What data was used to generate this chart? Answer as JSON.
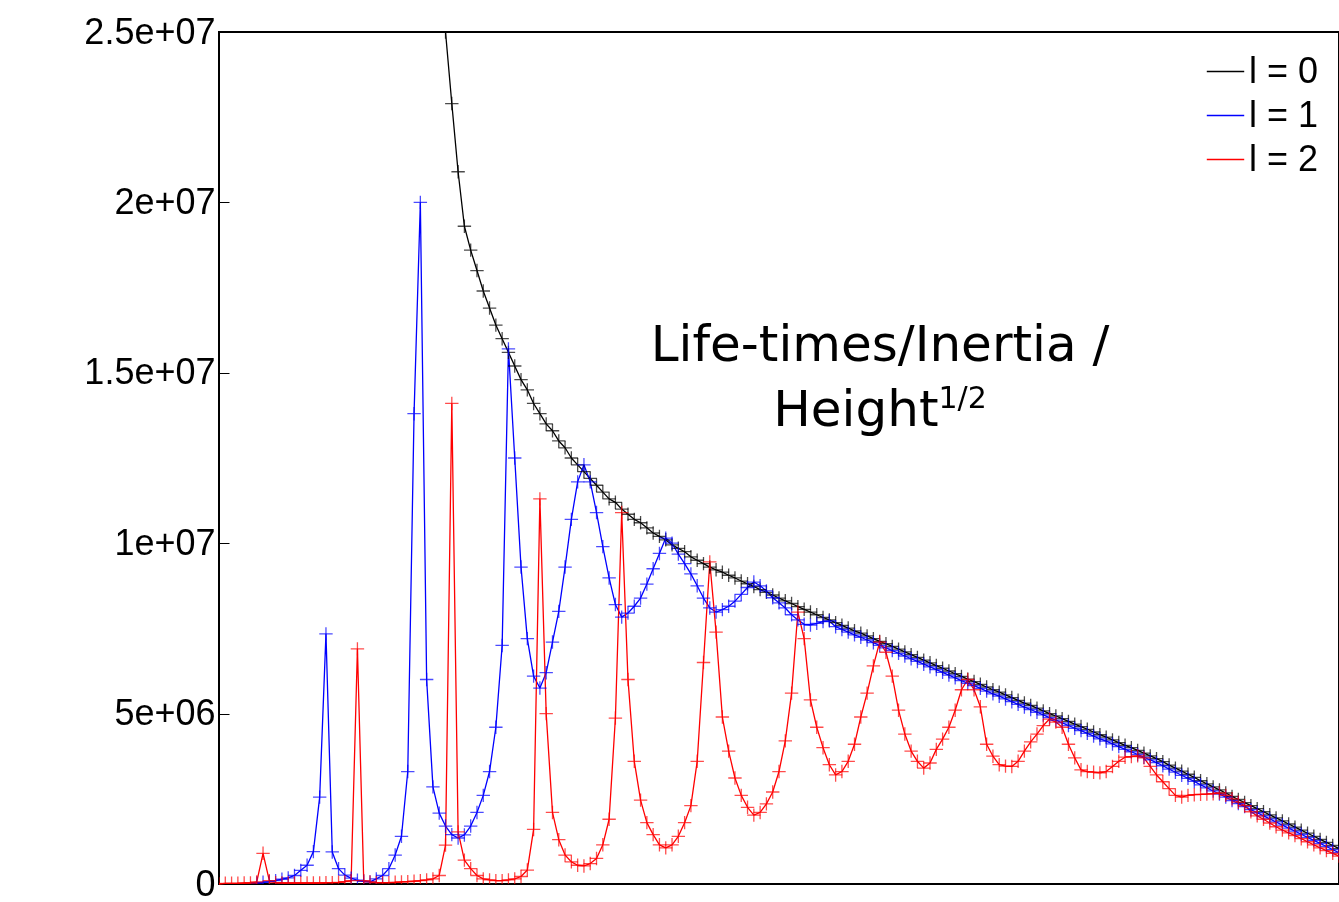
{
  "chart_data": {
    "type": "line",
    "annotations": [
      "Life-times/Inertia / Height$^{1/2}$"
    ],
    "categories": [
      null,
      null,
      null,
      null,
      null,
      null,
      null,
      null,
      null,
      null,
      null,
      null,
      null,
      null,
      null,
      null,
      null,
      null,
      null,
      null,
      null,
      null,
      null,
      null,
      null,
      null,
      null,
      null,
      null,
      null,
      null,
      null,
      null,
      null,
      null,
      null,
      null,
      null,
      null,
      null,
      null,
      null,
      null,
      null,
      null,
      null,
      null,
      null,
      null,
      null,
      null,
      null,
      null,
      null,
      null,
      null,
      null,
      null,
      null,
      null,
      null,
      null,
      null,
      null,
      null,
      null,
      null,
      null,
      null,
      null,
      null,
      null,
      null,
      null,
      null,
      null,
      null,
      null,
      null,
      null,
      null,
      null,
      null,
      null,
      null,
      null,
      null,
      null,
      null,
      null,
      null,
      null,
      null,
      null,
      null,
      null,
      null,
      null,
      null,
      null,
      null,
      null,
      null,
      null,
      null,
      null,
      null,
      null,
      null,
      null,
      null,
      null,
      null,
      null,
      null,
      null,
      null,
      null,
      null,
      null,
      null,
      null,
      null,
      null,
      null,
      null,
      null,
      null,
      null,
      null,
      null,
      null,
      null,
      null,
      null,
      null,
      null,
      null,
      null,
      null,
      null,
      null,
      null,
      null,
      null,
      null,
      null,
      null,
      null,
      null,
      null,
      null,
      null,
      null,
      null,
      null,
      null,
      null,
      null,
      null,
      null,
      null,
      null,
      null,
      null,
      null,
      null,
      null,
      null,
      null,
      null,
      null,
      null,
      null,
      null,
      null,
      null,
      null,
      null
    ],
    "ylim": [
      0,
      25000000
    ],
    "yticks": [
      0,
      {
        "value": 5000000,
        "label": "5e+06"
      },
      {
        "value": 10000000,
        "label": "1e+07"
      },
      {
        "value": 15000000,
        "label": "1.5e+07"
      },
      {
        "value": 20000000,
        "label": "2e+07"
      },
      {
        "value": 25000000,
        "label": "2.5e+07"
      }
    ],
    "tick_labels": "y",
    "grid": false,
    "legend": "top right",
    "marker": "cross",
    "line_style": "solid",
    "series": [
      {
        "name": "l = 0",
        "color": "#000000",
        "values": [
          null,
          null,
          null,
          null,
          null,
          null,
          null,
          null,
          null,
          null,
          null,
          null,
          null,
          null,
          null,
          null,
          null,
          null,
          null,
          null,
          null,
          null,
          null,
          null,
          null,
          null,
          null,
          null,
          null,
          null,
          null,
          null,
          null,
          null,
          null,
          null,
          25000000.0,
          22900000.0,
          20900000.0,
          19300000.0,
          18600000.0,
          18000000.0,
          17400000.0,
          16900000.0,
          16400000.0,
          16000000.0,
          15600000.0,
          15200000.0,
          14800000.0,
          14500000.0,
          14100000.0,
          13800000.0,
          13500000.0,
          13300000.0,
          13000000.0,
          12800000.0,
          12500000.0,
          12300000.0,
          12100000.0,
          11900000.0,
          11700000.0,
          11500000.0,
          11300000.0,
          11200000.0,
          11000000.0,
          10850000.0,
          10700000.0,
          10600000.0,
          10450000.0,
          10300000.0,
          10200000.0,
          10100000.0,
          9950000.0,
          9850000.0,
          9750000.0,
          9600000.0,
          9500000.0,
          9400000.0,
          9300000.0,
          9220000.0,
          9150000.0,
          9060000.0,
          8980000.0,
          8890000.0,
          8810000.0,
          8730000.0,
          8640000.0,
          8560000.0,
          8480000.0,
          8390000.0,
          8310000.0,
          8230000.0,
          8140000.0,
          8060000.0,
          7980000.0,
          7900000.0,
          7820000.0,
          7750000.0,
          7670000.0,
          7590000.0,
          7510000.0,
          7430000.0,
          7360000.0,
          7280000.0,
          7200000.0,
          7120000.0,
          7050000.0,
          6970000.0,
          6890000.0,
          6810000.0,
          6730000.0,
          6650000.0,
          6570000.0,
          6490000.0,
          6410000.0,
          6330000.0,
          6250000.0,
          6170000.0,
          6090000.0,
          6010000.0,
          5940000.0,
          5860000.0,
          5780000.0,
          5700000.0,
          5630000.0,
          5550000.0,
          5470000.0,
          5390000.0,
          5310000.0,
          5240000.0,
          5160000.0,
          5080000.0,
          5000000.0,
          4930000.0,
          4850000.0,
          4770000.0,
          4690000.0,
          4620000.0,
          4540000.0,
          4460000.0,
          4380000.0,
          4310000.0,
          4230000.0,
          4150000.0,
          4070000.0,
          4000000.0,
          3920000.0,
          3840000.0,
          3760000.0,
          3680000.0,
          3590000.0,
          3490000.0,
          3400000.0,
          3310000.0,
          3220000.0,
          3130000.0,
          3030000.0,
          2940000.0,
          2850000.0,
          2760000.0,
          2670000.0,
          2570000.0,
          2480000.0,
          2390000.0,
          2300000.0,
          2210000.0,
          2120000.0,
          2030000.0,
          1940000.0,
          1850000.0,
          1760000.0,
          1670000.0,
          1580000.0,
          1490000.0,
          1400000.0,
          1310000.0,
          1220000.0,
          1130000.0,
          1040000.0
        ]
      },
      {
        "name": "l = 1",
        "color": "#0000ff",
        "values": [
          null,
          null,
          null,
          null,
          null,
          null,
          30000.0,
          50000.0,
          70000.0,
          100000.0,
          140000.0,
          180000.0,
          250000.0,
          400000.0,
          550000.0,
          950000.0,
          2550000.0,
          7340000.0,
          940000.0,
          450000.0,
          260000.0,
          170000.0,
          110000.0,
          80000.0,
          60000.0,
          150000.0,
          250000.0,
          450000.0,
          850000.0,
          1400000.0,
          3300000.0,
          13800000.0,
          20000000.0,
          6000000.0,
          2850000.0,
          2080000.0,
          1700000.0,
          1450000.0,
          1350000.0,
          1440000.0,
          1700000.0,
          2100000.0,
          2600000.0,
          3300000.0,
          4600000.0,
          7000000.0,
          15700000.0,
          12500000.0,
          9300000.0,
          7200000.0,
          6100000.0,
          5750000.0,
          6200000.0,
          7100000.0,
          8000000.0,
          9300000.0,
          10700000.0,
          11800000.0,
          12300000.0,
          11800000.0,
          10900000.0,
          9900000.0,
          8980000.0,
          8200000.0,
          7830000.0,
          7950000.0,
          8150000.0,
          8390000.0,
          8800000.0,
          9250000.0,
          9700000.0,
          10150000.0,
          10000000.0,
          9680000.0,
          9400000.0,
          9100000.0,
          8750000.0,
          8390000.0,
          8100000.0,
          7980000.0,
          8050000.0,
          8150000.0,
          8300000.0,
          8500000.0,
          8700000.0,
          8860000.0,
          8750000.0,
          8600000.0,
          8400000.0,
          8250000.0,
          8100000.0,
          7900000.0,
          7750000.0,
          7620000.0,
          7600000.0,
          7650000.0,
          7700000.0,
          7720000.0,
          7550000.0,
          7470000.0,
          7390000.0,
          7310000.0,
          7240000.0,
          7160000.0,
          7080000.0,
          7000000.0,
          6930000.0,
          6850000.0,
          6770000.0,
          6690000.0,
          6610000.0,
          6530000.0,
          6450000.0,
          6370000.0,
          6290000.0,
          6210000.0,
          6130000.0,
          6050000.0,
          5970000.0,
          5890000.0,
          5820000.0,
          5740000.0,
          5660000.0,
          5580000.0,
          5510000.0,
          5430000.0,
          5350000.0,
          5270000.0,
          5190000.0,
          5120000.0,
          5040000.0,
          4960000.0,
          4880000.0,
          4810000.0,
          4730000.0,
          4650000.0,
          4570000.0,
          4500000.0,
          4420000.0,
          4340000.0,
          4260000.0,
          4190000.0,
          4110000.0,
          4030000.0,
          3950000.0,
          3880000.0,
          3800000.0,
          3720000.0,
          3640000.0,
          3560000.0,
          3470000.0,
          3370000.0,
          3280000.0,
          3190000.0,
          3100000.0,
          3010000.0,
          2910000.0,
          2820000.0,
          2730000.0,
          2640000.0,
          2550000.0,
          2450000.0,
          2360000.0,
          2270000.0,
          2180000.0,
          2090000.0,
          2000000.0,
          1910000.0,
          1820000.0,
          1730000.0,
          1640000.0,
          1550000.0,
          1460000.0,
          1370000.0,
          1280000.0,
          1190000.0,
          1100000.0,
          1010000.0,
          920000.0
        ]
      },
      {
        "name": "l = 2",
        "color": "#ff0000",
        "values": [
          0,
          20000.0,
          20000.0,
          20000.0,
          30000.0,
          30000.0,
          60000.0,
          900000.0,
          100000.0,
          40000.0,
          30000.0,
          30000.0,
          30000.0,
          30000.0,
          30000.0,
          30000.0,
          30000.0,
          40000.0,
          40000.0,
          50000.0,
          70000.0,
          100000.0,
          6900000.0,
          100000.0,
          60000.0,
          40000.0,
          40000.0,
          40000.0,
          50000.0,
          60000.0,
          70000.0,
          80000.0,
          100000.0,
          120000.0,
          150000.0,
          250000.0,
          1140000.0,
          14100000.0,
          1530000.0,
          700000.0,
          450000.0,
          250000.0,
          150000.0,
          120000.0,
          100000.0,
          100000.0,
          120000.0,
          150000.0,
          220000.0,
          410000.0,
          1600000.0,
          11300000.0,
          5000000.0,
          2100000.0,
          1300000.0,
          850000.0,
          650000.0,
          550000.0,
          530000.0,
          600000.0,
          750000.0,
          1150000.0,
          1900000.0,
          4870000.0,
          10900000.0,
          6000000.0,
          3600000.0,
          2460000.0,
          1800000.0,
          1450000.0,
          1150000.0,
          1060000.0,
          1150000.0,
          1400000.0,
          1800000.0,
          2300000.0,
          3600000.0,
          6500000.0,
          9450000.0,
          7390000.0,
          4900000.0,
          3900000.0,
          3110000.0,
          2600000.0,
          2250000.0,
          2020000.0,
          2100000.0,
          2350000.0,
          2700000.0,
          3300000.0,
          4200000.0,
          5600000.0,
          7980000.0,
          7200000.0,
          5400000.0,
          4600000.0,
          4000000.0,
          3500000.0,
          3200000.0,
          3300000.0,
          3600000.0,
          4100000.0,
          4900000.0,
          5600000.0,
          6400000.0,
          7100000.0,
          6800000.0,
          6100000.0,
          5100000.0,
          4400000.0,
          3900000.0,
          3600000.0,
          3400000.0,
          3550000.0,
          3950000.0,
          4250000.0,
          4600000.0,
          5100000.0,
          5700000.0,
          6000000.0,
          5700000.0,
          5200000.0,
          4100000.0,
          3750000.0,
          3500000.0,
          3460000.0,
          3450000.0,
          3600000.0,
          3900000.0,
          4170000.0,
          4400000.0,
          4650000.0,
          4840000.0,
          4750000.0,
          4600000.0,
          4100000.0,
          3700000.0,
          3350000.0,
          3300000.0,
          3280000.0,
          3260000.0,
          3300000.0,
          3450000.0,
          3600000.0,
          3720000.0,
          3740000.0,
          3760000.0,
          3700000.0,
          3450000.0,
          3200000.0,
          3000000.0,
          2800000.0,
          2600000.0,
          2550000.0,
          2600000.0,
          2620000.0,
          2630000.0,
          2640000.0,
          2650000.0,
          2670000.0,
          2600000.0,
          2500000.0,
          2400000.0,
          2300000.0,
          2120000.0,
          2000000.0,
          1900000.0,
          1790000.0,
          1680000.0,
          1580000.0,
          1500000.0,
          1420000.0,
          1330000.0,
          1240000.0,
          1150000.0,
          1060000.0,
          980000.0,
          900000.0,
          820000.0
        ]
      }
    ]
  }
}
